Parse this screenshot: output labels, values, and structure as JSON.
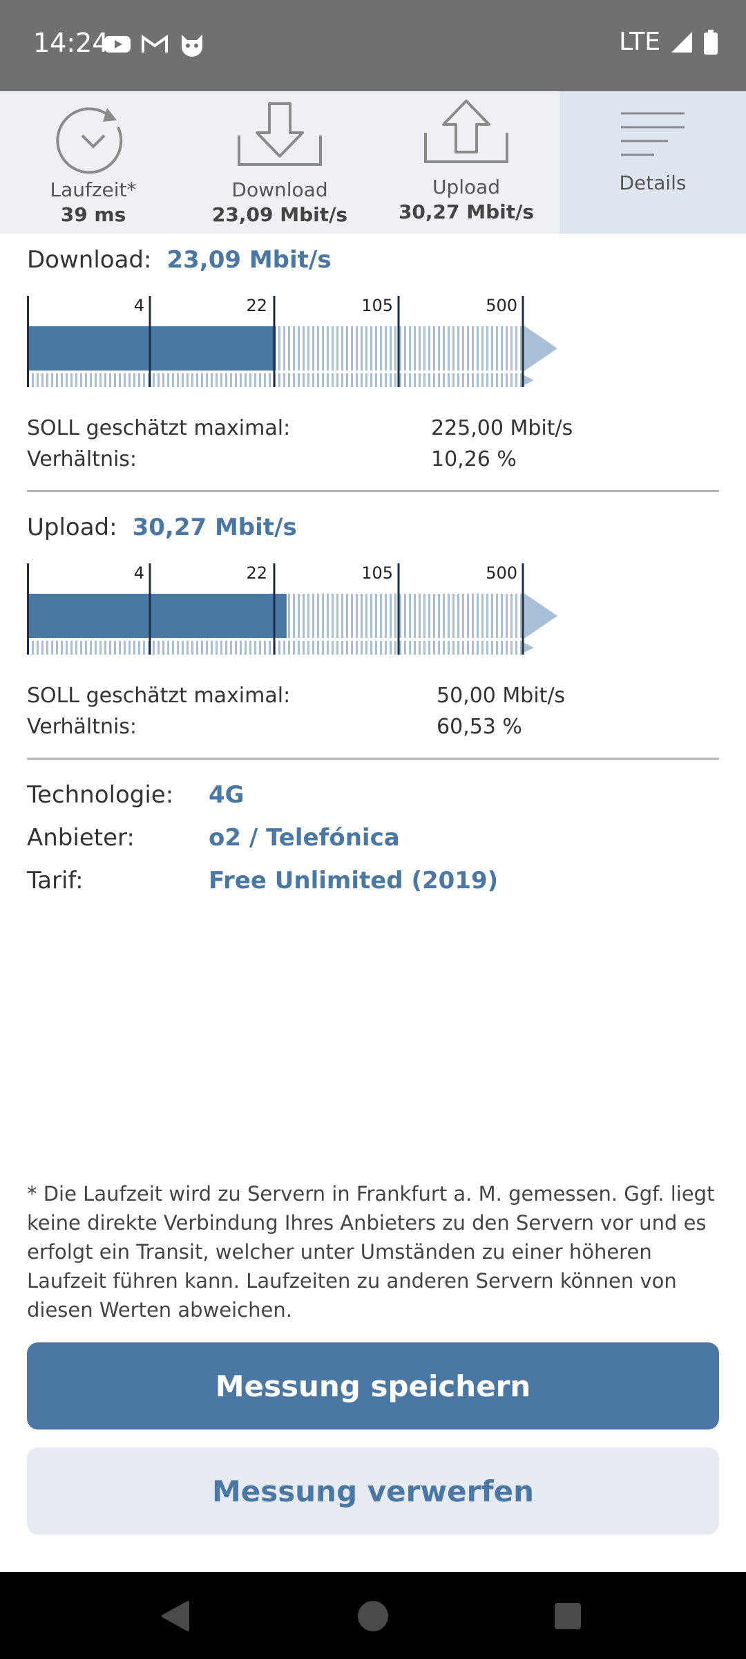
{
  "status_bar": {
    "time": "14:24",
    "network": "LTE",
    "icons": [
      "youtube-icon",
      "gmail-icon",
      "cat-app-icon",
      "signal-icon",
      "battery-icon"
    ]
  },
  "tabs": [
    {
      "label": "Laufzeit*",
      "value": "39 ms",
      "icon": "timer-icon"
    },
    {
      "label": "Download",
      "value": "23,09 Mbit/s",
      "icon": "download-icon"
    },
    {
      "label": "Upload",
      "value": "30,27 Mbit/s",
      "icon": "upload-icon"
    },
    {
      "label": "Details",
      "value": "",
      "icon": "menu-lines-icon",
      "active": true
    }
  ],
  "download": {
    "label": "Download:",
    "value": "23,09 Mbit/s",
    "measured": 23.09,
    "scale_ticks": [
      "4",
      "22",
      "105",
      "500"
    ],
    "soll_label": "SOLL geschätzt maximal:",
    "soll_value": "225,00 Mbit/s",
    "ratio_label": "Verhältnis:",
    "ratio_value": "10,26 %"
  },
  "upload": {
    "label": "Upload:",
    "value": "30,27 Mbit/s",
    "measured": 30.27,
    "scale_ticks": [
      "4",
      "22",
      "105",
      "500"
    ],
    "soll_label": "SOLL geschätzt maximal:",
    "soll_value": "50,00 Mbit/s",
    "ratio_label": "Verhältnis:",
    "ratio_value": "60,53 %"
  },
  "info": {
    "technology_label": "Technologie:",
    "technology_value": "4G",
    "provider_label": "Anbieter:",
    "provider_value": "o2 / Telefónica",
    "tariff_label": "Tarif:",
    "tariff_value": "Free Unlimited (2019)"
  },
  "footnote": "* Die Laufzeit wird zu Servern in Frankfurt a. M. gemessen. Ggf. liegt keine direkte Verbindung Ihres Anbieters zu den Servern vor und es erfolgt ein Transit, welcher unter Umständen zu einer höheren Laufzeit führen kann. Laufzeiten zu anderen Servern können von diesen Werten abweichen.",
  "buttons": {
    "save": "Messung speichern",
    "discard": "Messung verwerfen"
  },
  "colors": {
    "accent": "#4a77a4",
    "bar_light": "#a9bfd6",
    "status_bar": "#707070"
  }
}
